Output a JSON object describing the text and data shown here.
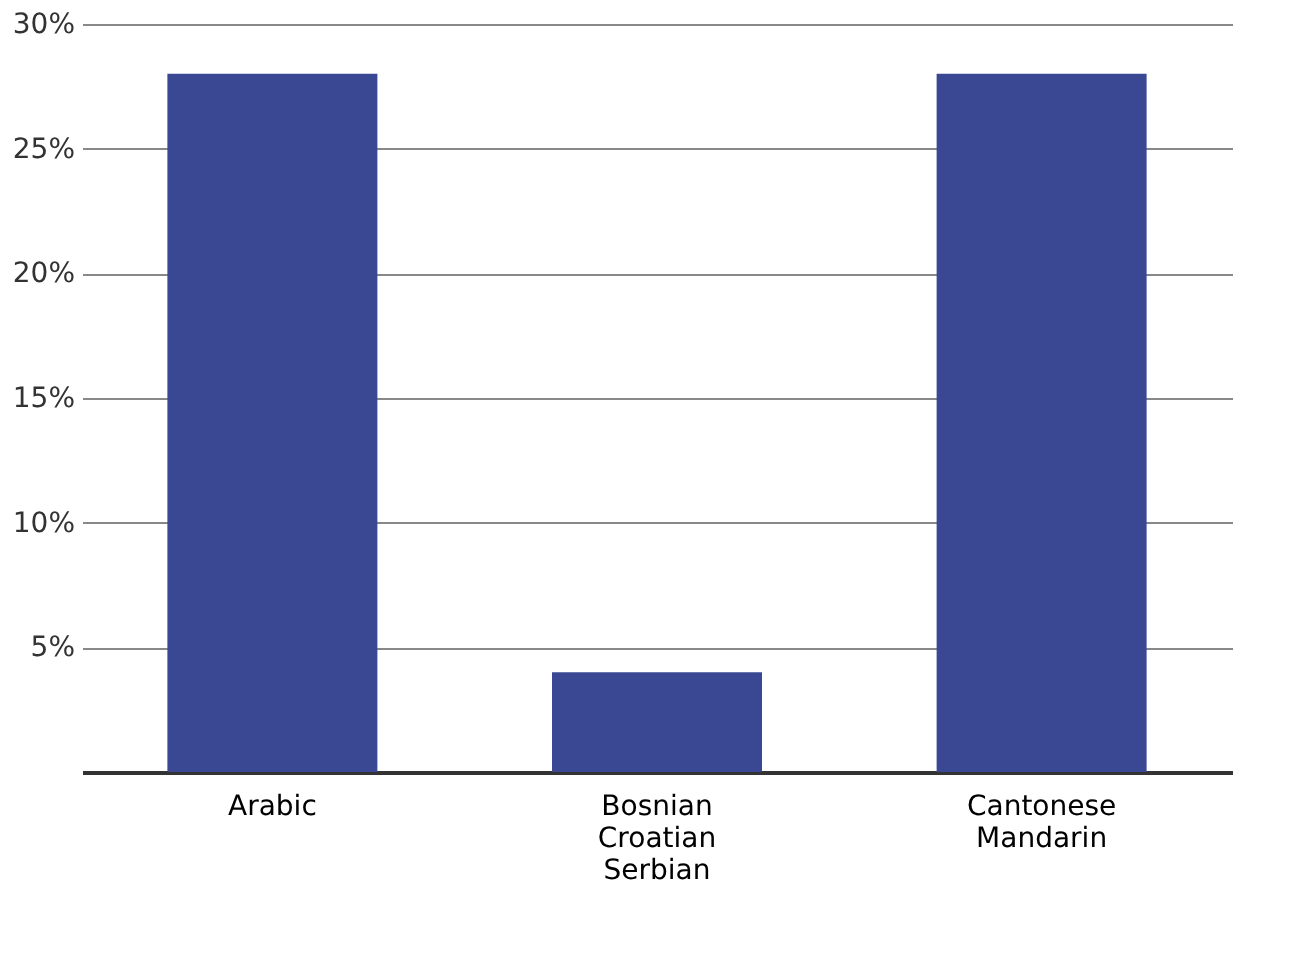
{
  "chart_data": {
    "type": "bar",
    "categories": [
      "Arabic",
      "Bosnian Croatian Serbian",
      "Cantonese Mandarin"
    ],
    "values": [
      28,
      4,
      28
    ],
    "color": "#3a4894",
    "ylim": [
      0,
      30
    ],
    "yticks": [
      {
        "value": 0,
        "label": null
      },
      {
        "value": 5,
        "label": "5%"
      },
      {
        "value": 10,
        "label": "10%"
      },
      {
        "value": 15,
        "label": "15%"
      },
      {
        "value": 20,
        "label": "20%"
      },
      {
        "value": 25,
        "label": "25%"
      },
      {
        "value": 30,
        "label": "30%"
      }
    ],
    "grid": "y"
  }
}
